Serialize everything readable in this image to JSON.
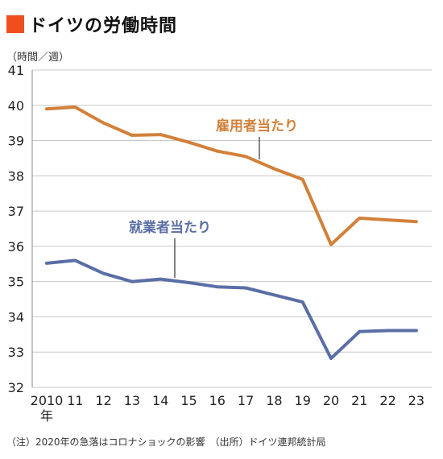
{
  "title": "ドイツの労働時間",
  "unit_label": "（時間／週）",
  "note": "（注）2020年の急落はコロナショックの影響　（出所）ドイツ連邦統計局",
  "colors": {
    "title_square": "#f04e1c",
    "employees": "#d2803a",
    "workers": "#5a6ea6"
  },
  "chart_data": {
    "type": "line",
    "x": [
      "2010",
      "11",
      "12",
      "13",
      "14",
      "15",
      "16",
      "17",
      "18",
      "19",
      "20",
      "21",
      "22",
      "23"
    ],
    "x_sublabel": "年",
    "ylim": [
      32,
      41
    ],
    "yticks": [
      32,
      33,
      34,
      35,
      36,
      37,
      38,
      39,
      40,
      41
    ],
    "grid": true,
    "series": [
      {
        "name": "雇用者当たり",
        "color": "#d2803a",
        "values": [
          39.9,
          39.95,
          39.5,
          39.15,
          39.17,
          38.95,
          38.7,
          38.55,
          38.2,
          37.9,
          36.05,
          36.8,
          36.75,
          36.7
        ]
      },
      {
        "name": "就業者当たり",
        "color": "#5a6ea6",
        "values": [
          35.52,
          35.6,
          35.23,
          35.0,
          35.07,
          34.97,
          34.85,
          34.82,
          34.62,
          34.42,
          32.82,
          33.58,
          33.61,
          33.61
        ]
      }
    ]
  }
}
